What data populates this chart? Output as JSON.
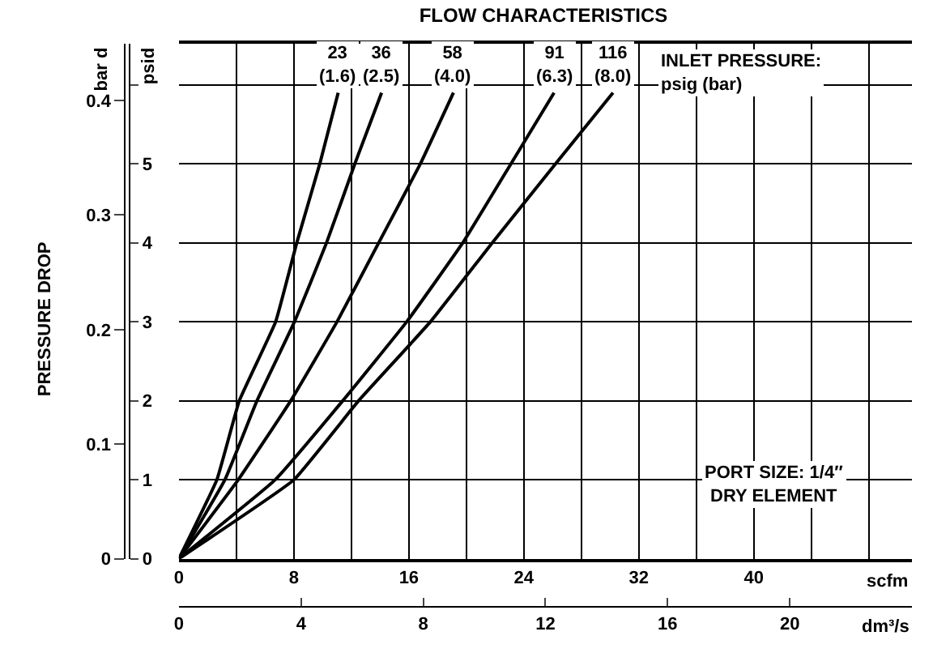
{
  "chart_data": {
    "type": "line",
    "title": "FLOW CHARACTERISTICS",
    "xlabel": "scfm",
    "x2label": "dm³/s",
    "ylabel": "psid",
    "y2label": "bar d",
    "xlim": [
      0,
      51
    ],
    "xticks": [
      0,
      {
        "value": 4,
        "label": null
      },
      8,
      {
        "value": 12,
        "label": null
      },
      16,
      {
        "value": 20,
        "label": null
      },
      24,
      {
        "value": 28,
        "label": null
      },
      32,
      {
        "value": 36,
        "label": null
      },
      40,
      {
        "value": 44,
        "label": null
      },
      {
        "value": 48,
        "label": null
      }
    ],
    "x2lim": [
      0,
      24
    ],
    "x2ticks": [
      0,
      4,
      8,
      12,
      16,
      20
    ],
    "ylim": [
      0,
      6.52
    ],
    "yticks": [
      0,
      1,
      2,
      3,
      4,
      5,
      {
        "value": 6,
        "label": null
      }
    ],
    "y2lim": [
      0,
      0.4495
    ],
    "y2ticks": [
      0,
      0.1,
      0.2,
      0.3,
      0.4
    ],
    "grid": true,
    "legend": false,
    "marker": "none",
    "line_style": "solid",
    "series": [
      {
        "name": "23\n(1.6)",
        "color": "#000000",
        "x": [
          0,
          2.64,
          4.2,
          6.73,
          8.2,
          9.8,
          11.08
        ],
        "values": [
          0,
          1,
          2,
          3,
          4,
          5,
          5.9
        ]
      },
      {
        "name": "36\n(2.5)",
        "color": "#000000",
        "x": [
          0,
          3.2,
          5.43,
          8.04,
          10.27,
          12.24,
          14.1
        ],
        "values": [
          0,
          1,
          2,
          3,
          4,
          5,
          5.9
        ]
      },
      {
        "name": "58\n(4.0)",
        "color": "#000000",
        "x": [
          0,
          4.13,
          7.78,
          11.0,
          13.9,
          16.8,
          19.1
        ],
        "values": [
          0,
          1,
          2,
          3,
          4,
          5,
          5.9
        ]
      },
      {
        "name": "91\n(6.3)",
        "color": "#000000",
        "x": [
          0,
          6.7,
          11.4,
          15.85,
          19.75,
          23.1,
          26.1
        ],
        "values": [
          0,
          1,
          2,
          3,
          4,
          5,
          5.9
        ]
      },
      {
        "name": "116\n(8.0)",
        "color": "#000000",
        "x": [
          0,
          8.0,
          12.5,
          17.5,
          21.8,
          26.2,
          30.2
        ],
        "values": [
          0,
          1,
          2,
          3,
          4,
          5,
          5.9
        ]
      }
    ],
    "annotations": [
      "PRESSURE DROP",
      "INLET PRESSURE:\npsig (bar)",
      "PORT SIZE: 1/4″\nDRY ELEMENT"
    ]
  }
}
